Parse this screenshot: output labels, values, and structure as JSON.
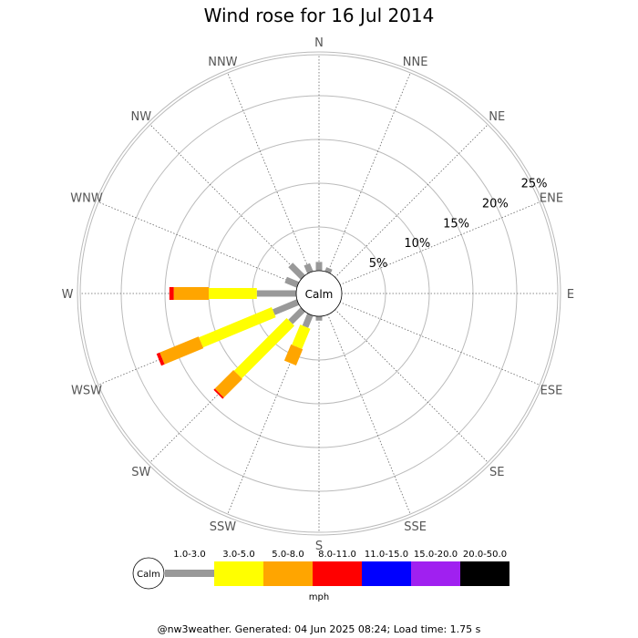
{
  "chart_data": {
    "type": "wind-rose",
    "title": "Wind rose for 16 Jul 2014",
    "directions": [
      "N",
      "NNE",
      "NE",
      "ENE",
      "E",
      "ESE",
      "SE",
      "SSE",
      "S",
      "SSW",
      "SW",
      "WSW",
      "W",
      "WNW",
      "NW",
      "NNW"
    ],
    "ring_labels": [
      "5%",
      "10%",
      "15%",
      "20%",
      "25%"
    ],
    "ring_values": [
      5,
      10,
      15,
      20,
      25
    ],
    "calm_label": "Calm",
    "unit": "mph",
    "speed_bins": [
      {
        "label": "1.0-3.0",
        "color": "#999999"
      },
      {
        "label": "3.0-5.0",
        "color": "#ffff00"
      },
      {
        "label": "5.0-8.0",
        "color": "#ffa500"
      },
      {
        "label": "8.0-11.0",
        "color": "#ff0000"
      },
      {
        "label": "11.0-15.0",
        "color": "#0000ff"
      },
      {
        "label": "15.0-20.0",
        "color": "#a020f0"
      },
      {
        "label": "20.0-50.0",
        "color": "#000000"
      }
    ],
    "cumulative_percent": [
      {
        "direction": "N",
        "values": [
          1.0,
          1.0,
          1.0,
          1.0,
          1.0,
          1.0,
          1.0
        ]
      },
      {
        "direction": "NNE",
        "values": [
          0.5,
          0.5,
          0.5,
          0.5,
          0.5,
          0.5,
          0.5
        ]
      },
      {
        "direction": "S",
        "values": [
          0.5,
          0.5,
          0.5,
          0.5,
          0.5,
          0.5,
          0.5
        ]
      },
      {
        "direction": "SSW",
        "values": [
          1.5,
          4.0,
          6.0,
          6.0,
          6.0,
          6.0,
          6.0
        ]
      },
      {
        "direction": "SW",
        "values": [
          2.0,
          10.5,
          13.5,
          13.7,
          13.7,
          13.7,
          13.7
        ]
      },
      {
        "direction": "WSW",
        "values": [
          3.0,
          12.0,
          16.8,
          17.2,
          17.2,
          17.2,
          17.2
        ]
      },
      {
        "direction": "W",
        "values": [
          4.5,
          10.0,
          14.0,
          14.5,
          14.5,
          14.5,
          14.5
        ]
      },
      {
        "direction": "WNW",
        "values": [
          1.5,
          1.5,
          1.5,
          1.5,
          1.5,
          1.5,
          1.5
        ]
      },
      {
        "direction": "NW",
        "values": [
          2.0,
          2.0,
          2.0,
          2.0,
          2.0,
          2.0,
          2.0
        ]
      },
      {
        "direction": "NNW",
        "values": [
          1.0,
          1.0,
          1.0,
          1.0,
          1.0,
          1.0,
          1.0
        ]
      }
    ]
  },
  "footer": "@nw3weather. Generated: 04 Jun 2025 08:24; Load time: 1.75 s"
}
